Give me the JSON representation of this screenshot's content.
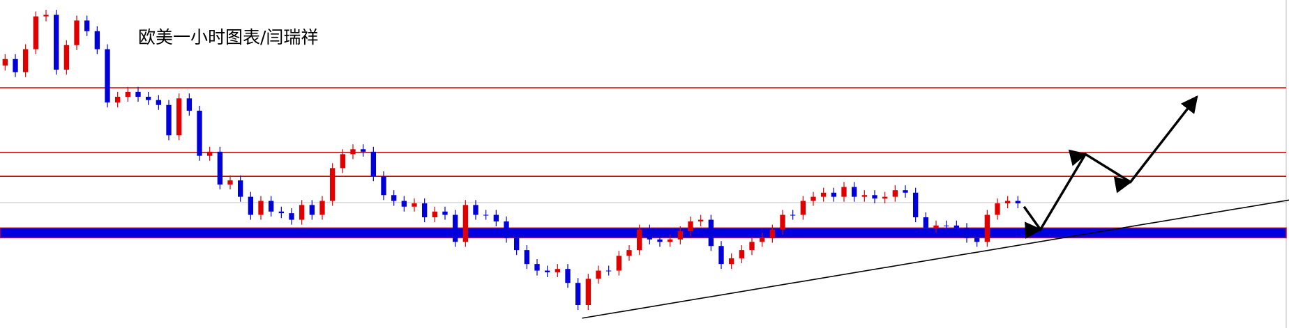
{
  "chart_data": {
    "type": "candlestick",
    "title": "欧美一小时图表/闫瑞祥",
    "up_color": "#e00000",
    "down_color": "#0000d8",
    "xlim": [
      -0.5,
      125.5
    ],
    "ylim": [
      0,
      400
    ],
    "open": [
      320,
      328,
      312,
      340,
      380,
      382,
      315,
      345,
      375,
      362,
      340,
      275,
      282,
      288,
      282,
      278,
      272,
      235,
      280,
      265,
      210,
      215,
      175,
      180,
      160,
      138,
      155,
      142,
      140,
      132,
      150,
      138,
      155,
      195,
      212,
      218,
      215,
      185,
      162,
      155,
      148,
      152,
      135,
      142,
      138,
      105,
      150,
      138,
      138,
      130,
      110,
      95,
      78,
      70,
      68,
      72,
      55,
      28,
      60,
      70,
      70,
      88,
      95,
      120,
      108,
      105,
      108,
      118,
      130,
      132,
      100,
      78,
      85,
      95,
      105,
      110,
      120,
      138,
      138,
      155,
      160,
      165,
      160,
      172,
      160,
      162,
      158,
      160,
      168,
      165,
      135,
      122,
      125,
      125,
      122,
      110,
      105,
      138,
      152,
      155
    ],
    "high": [
      334,
      334,
      346,
      386,
      388,
      388,
      351,
      381,
      381,
      368,
      346,
      288,
      294,
      294,
      288,
      284,
      278,
      286,
      286,
      271,
      221,
      221,
      186,
      186,
      166,
      161,
      161,
      148,
      146,
      156,
      156,
      161,
      201,
      218,
      224,
      224,
      221,
      191,
      168,
      161,
      158,
      158,
      148,
      148,
      144,
      156,
      156,
      144,
      144,
      136,
      116,
      101,
      84,
      76,
      78,
      78,
      61,
      66,
      76,
      76,
      94,
      101,
      126,
      126,
      114,
      114,
      124,
      136,
      138,
      138,
      106,
      91,
      101,
      111,
      116,
      126,
      144,
      144,
      161,
      166,
      171,
      171,
      178,
      178,
      168,
      168,
      166,
      174,
      174,
      171,
      141,
      131,
      131,
      131,
      128,
      116,
      144,
      158,
      161,
      161
    ],
    "low": [
      314,
      306,
      306,
      334,
      374,
      309,
      309,
      339,
      356,
      334,
      269,
      269,
      276,
      276,
      272,
      266,
      229,
      229,
      259,
      204,
      204,
      169,
      169,
      154,
      132,
      132,
      136,
      134,
      126,
      126,
      132,
      132,
      149,
      189,
      206,
      209,
      179,
      156,
      149,
      142,
      142,
      129,
      129,
      132,
      99,
      99,
      132,
      132,
      124,
      104,
      89,
      72,
      64,
      62,
      62,
      49,
      22,
      22,
      54,
      64,
      64,
      82,
      89,
      102,
      99,
      99,
      102,
      112,
      124,
      94,
      72,
      72,
      79,
      89,
      99,
      104,
      114,
      132,
      132,
      149,
      154,
      154,
      154,
      154,
      154,
      152,
      152,
      154,
      159,
      129,
      116,
      116,
      119,
      116,
      104,
      99,
      99,
      132,
      146,
      146
    ],
    "close": [
      328,
      312,
      340,
      380,
      382,
      315,
      345,
      375,
      362,
      340,
      275,
      282,
      288,
      282,
      278,
      272,
      235,
      280,
      265,
      210,
      215,
      175,
      180,
      160,
      138,
      155,
      142,
      140,
      132,
      150,
      138,
      155,
      195,
      212,
      218,
      215,
      185,
      162,
      155,
      148,
      152,
      135,
      142,
      138,
      105,
      150,
      138,
      138,
      130,
      110,
      95,
      78,
      70,
      68,
      72,
      55,
      28,
      60,
      70,
      70,
      88,
      95,
      120,
      108,
      105,
      108,
      118,
      130,
      132,
      100,
      78,
      85,
      95,
      105,
      110,
      120,
      138,
      138,
      155,
      160,
      165,
      160,
      172,
      160,
      162,
      158,
      160,
      168,
      165,
      135,
      122,
      125,
      125,
      122,
      110,
      105,
      138,
      152,
      155,
      152
    ],
    "levels": [
      {
        "value": 293,
        "color": "#e00000"
      },
      {
        "value": 214,
        "color": "#e00000"
      },
      {
        "value": 185,
        "color": "#e00000"
      },
      {
        "value": 153,
        "color": "#c8c8c8"
      }
    ],
    "band": {
      "from": 110,
      "to": 122,
      "color": "#0000e0",
      "border": "#e00000"
    },
    "trend_line": {
      "x": [
        56.4,
        125.5
      ],
      "y": [
        12,
        156
      ],
      "color": "#000000"
    },
    "arrow_path": {
      "x": [
        99.6,
        101.2,
        105.6,
        110.0,
        116.5
      ],
      "y": [
        148,
        120,
        212,
        178,
        282
      ],
      "color": "#000000"
    }
  }
}
